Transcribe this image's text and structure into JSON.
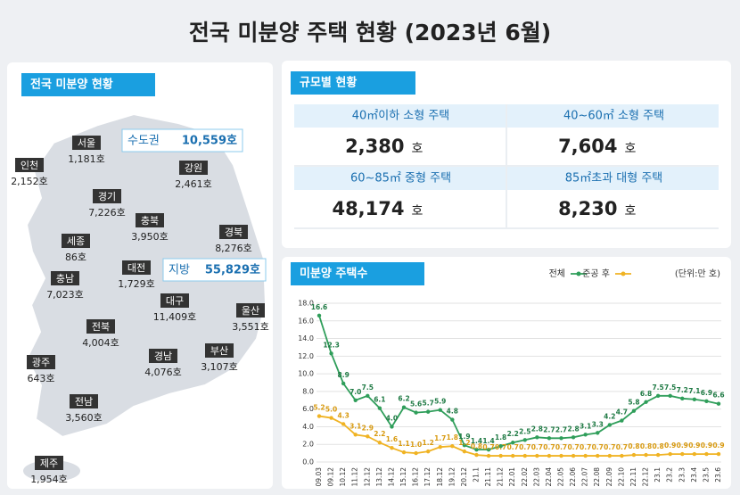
{
  "title": "전국 미분양 주택 현황 (2023년 6월)",
  "map": {
    "header": "전국 미분양 현황",
    "regions": [
      {
        "name": "인천",
        "value": "2,152호"
      },
      {
        "name": "서울",
        "value": "1,181호"
      },
      {
        "name": "경기",
        "value": "7,226호"
      },
      {
        "name": "강원",
        "value": "2,461호"
      },
      {
        "name": "충북",
        "value": "3,950호"
      },
      {
        "name": "세종",
        "value": "86호"
      },
      {
        "name": "경북",
        "value": "8,276호"
      },
      {
        "name": "충남",
        "value": "7,023호"
      },
      {
        "name": "대전",
        "value": "1,729호"
      },
      {
        "name": "대구",
        "value": "11,409호"
      },
      {
        "name": "울산",
        "value": "3,551호"
      },
      {
        "name": "전북",
        "value": "4,004호"
      },
      {
        "name": "경남",
        "value": "4,076호"
      },
      {
        "name": "부산",
        "value": "3,107호"
      },
      {
        "name": "광주",
        "value": "643호"
      },
      {
        "name": "전남",
        "value": "3,560호"
      },
      {
        "name": "제주",
        "value": "1,954호"
      }
    ],
    "callouts": [
      {
        "label": "수도권",
        "value": "10,559호"
      },
      {
        "label": "지방",
        "value": "55,829호"
      }
    ]
  },
  "size": {
    "header": "규모별 현황",
    "cells": [
      {
        "label": "40㎡이하 소형 주택",
        "value": "2,380",
        "unit": "호"
      },
      {
        "label": "40~60㎡ 소형 주택",
        "value": "7,604",
        "unit": "호"
      },
      {
        "label": "60~85㎡ 중형 주택",
        "value": "48,174",
        "unit": "호"
      },
      {
        "label": "85㎡초과 대형 주택",
        "value": "8,230",
        "unit": "호"
      }
    ]
  },
  "chart_data": {
    "type": "line",
    "title": "미분양 주택수",
    "unit": "(단위:만 호)",
    "categories": [
      "09.03",
      "09.12",
      "10.12",
      "11.12",
      "12.12",
      "13.12",
      "14.12",
      "15.12",
      "16.12",
      "17.12",
      "18.12",
      "19.12",
      "20.12",
      "21.1",
      "21.11",
      "21.12",
      "22.01",
      "22.02",
      "22.03",
      "22.04",
      "22.05",
      "22.06",
      "22.07",
      "22.08",
      "22.09",
      "22.10",
      "22.11",
      "22.12",
      "23.1",
      "23.2",
      "23.3",
      "23.4",
      "23.5",
      "23.6"
    ],
    "series": [
      {
        "name": "전체",
        "color": "#2f9e5a",
        "values": [
          16.6,
          12.3,
          8.9,
          7.0,
          7.5,
          6.1,
          4.0,
          6.2,
          5.6,
          5.7,
          5.9,
          4.8,
          1.9,
          1.4,
          1.4,
          1.8,
          2.2,
          2.5,
          2.8,
          2.7,
          2.7,
          2.8,
          3.1,
          3.3,
          4.2,
          4.7,
          5.8,
          6.8,
          7.5,
          7.5,
          7.2,
          7.1,
          6.9,
          6.6
        ],
        "value_labels": [
          "16.6",
          "12.3",
          "8.9",
          "7.0",
          "7.5",
          "6.1",
          "4.0",
          "6.2",
          "5.6",
          "5.7",
          "5.9",
          "4.8",
          "1.9",
          "1.4",
          "1.4",
          "1.8",
          "2.2",
          "2.5",
          "2.8",
          "2.7",
          "2.7",
          "2.8",
          "3.1",
          "3.3",
          "4.2",
          "4.7",
          "5.8",
          "6.8",
          "7.5",
          "7.5",
          "7.2",
          "7.1",
          "6.9",
          "6.6"
        ]
      },
      {
        "name": "준공 후",
        "color": "#f0b323",
        "values": [
          5.2,
          5.0,
          4.3,
          3.1,
          2.9,
          2.2,
          1.6,
          1.1,
          1.0,
          1.2,
          1.7,
          1.8,
          1.2,
          0.8,
          0.7,
          0.7,
          0.7,
          0.7,
          0.7,
          0.7,
          0.7,
          0.7,
          0.7,
          0.7,
          0.7,
          0.7,
          0.8,
          0.8,
          0.8,
          0.9,
          0.9,
          0.9,
          0.9,
          0.9
        ],
        "value_labels": [
          "5.2",
          "5.0",
          "4.3",
          "3.1",
          "2.9",
          "2.2",
          "1.6",
          "1.1",
          "1.0",
          "1.2",
          "1.7",
          "1.8",
          "1.2",
          "0.8",
          "0.7",
          "0.7",
          "0.7",
          "0.7",
          "0.7",
          "0.7",
          "0.7",
          "0.7",
          "0.7",
          "0.7",
          "0.7",
          "0.7",
          "0.8",
          "0.8",
          "0.8",
          "0.9",
          "0.9",
          "0.9",
          "0.9",
          "0.9"
        ]
      }
    ],
    "ylim": [
      0,
      18
    ],
    "yticks": [
      {
        "value": 0,
        "label": "0.0"
      },
      {
        "value": 2,
        "label": "2.0"
      },
      {
        "value": 4,
        "label": "4.0"
      },
      {
        "value": 6,
        "label": "6.0"
      },
      {
        "value": 8,
        "label": "8.0"
      },
      {
        "value": 10,
        "label": "10.0"
      },
      {
        "value": 12,
        "label": "12.0"
      },
      {
        "value": 14,
        "label": "14.0"
      },
      {
        "value": 16,
        "label": "16.0"
      },
      {
        "value": 18,
        "label": "18.0"
      }
    ],
    "grid": true
  }
}
